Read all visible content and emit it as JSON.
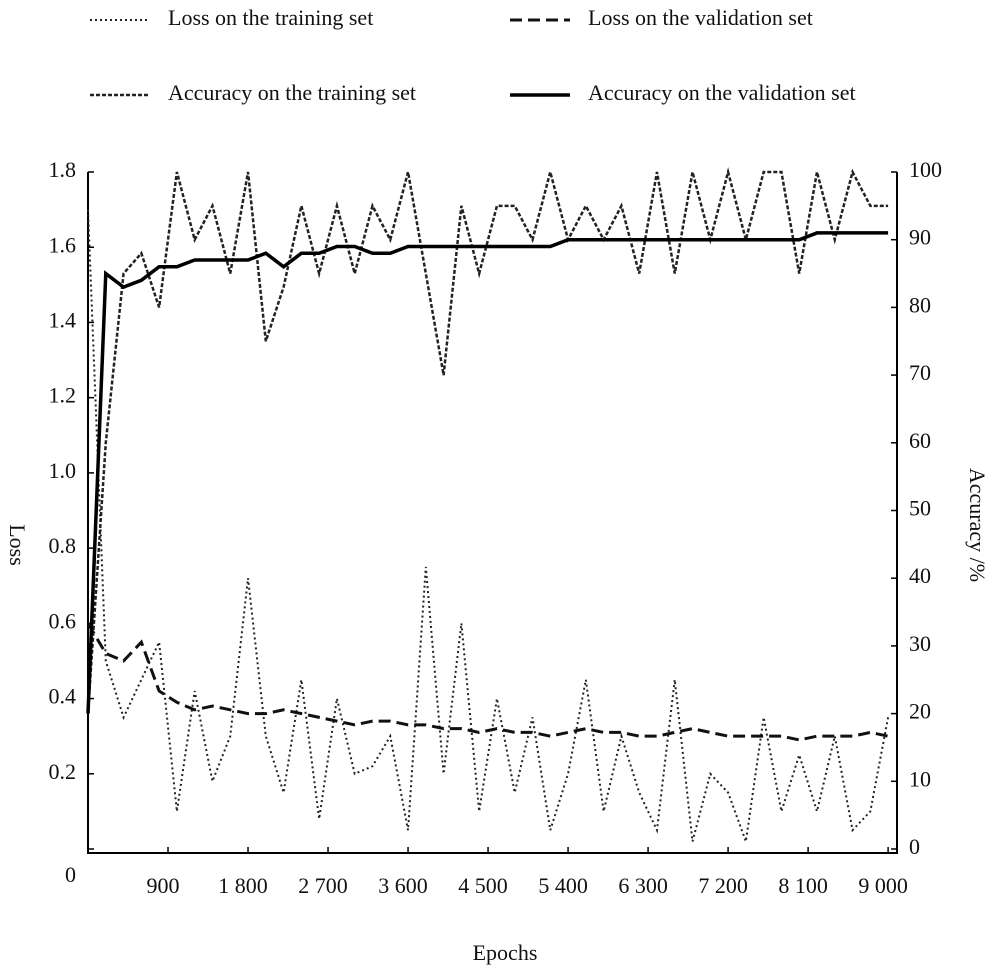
{
  "chart_data": {
    "type": "line",
    "x_label": "Epochs",
    "y_label": "Loss",
    "y2_label": "Accuracy /%",
    "x": [
      0,
      200,
      400,
      600,
      800,
      1000,
      1200,
      1400,
      1600,
      1800,
      2000,
      2200,
      2400,
      2600,
      2800,
      3000,
      3200,
      3400,
      3600,
      3800,
      4000,
      4200,
      4400,
      4600,
      4800,
      5000,
      5200,
      5400,
      5600,
      5800,
      6000,
      6200,
      6400,
      6600,
      6800,
      7000,
      7200,
      7400,
      7600,
      7800,
      8000,
      8200,
      8400,
      8600,
      8800,
      9000
    ],
    "xlim": [
      0,
      9100
    ],
    "xticks": [
      0,
      900,
      {
        "value": 1800,
        "label": "1 800"
      },
      {
        "value": 2700,
        "label": "2 700"
      },
      {
        "value": 3600,
        "label": "3 600"
      },
      {
        "value": 4500,
        "label": "4 500"
      },
      {
        "value": 5400,
        "label": "5 400"
      },
      {
        "value": 6300,
        "label": "6 300"
      },
      {
        "value": 7200,
        "label": "7 200"
      },
      {
        "value": 8100,
        "label": "8 100"
      },
      {
        "value": 9000,
        "label": "9 000"
      }
    ],
    "ylim": [
      0,
      1.8
    ],
    "yticks": [
      0,
      0.2,
      0.4,
      0.6,
      0.8,
      {
        "value": 1,
        "label": "1.0"
      },
      1.2,
      1.4,
      1.6,
      1.8
    ],
    "y2lim": [
      0,
      100
    ],
    "y2ticks": [
      0,
      10,
      20,
      30,
      40,
      50,
      60,
      70,
      80,
      90,
      100
    ],
    "series": [
      {
        "name": "Loss on the training set",
        "color": "#222222",
        "linestyle": "dotted",
        "axis": "y",
        "values": [
          1.7,
          0.5,
          0.35,
          0.45,
          0.55,
          0.1,
          0.42,
          0.18,
          0.3,
          0.72,
          0.3,
          0.15,
          0.45,
          0.08,
          0.4,
          0.2,
          0.22,
          0.3,
          0.05,
          0.75,
          0.2,
          0.6,
          0.1,
          0.4,
          0.15,
          0.35,
          0.05,
          0.2,
          0.45,
          0.1,
          0.3,
          0.15,
          0.05,
          0.45,
          0.02,
          0.2,
          0.15,
          0.02,
          0.35,
          0.1,
          0.25,
          0.1,
          0.3,
          0.05,
          0.1,
          0.35
        ]
      },
      {
        "name": "Loss on the validation set",
        "color": "#111111",
        "linestyle": "dashed",
        "axis": "y",
        "values": [
          0.6,
          0.52,
          0.5,
          0.55,
          0.42,
          0.39,
          0.37,
          0.38,
          0.37,
          0.36,
          0.36,
          0.37,
          0.36,
          0.35,
          0.34,
          0.33,
          0.34,
          0.34,
          0.33,
          0.33,
          0.32,
          0.32,
          0.31,
          0.32,
          0.31,
          0.31,
          0.3,
          0.31,
          0.32,
          0.31,
          0.31,
          0.3,
          0.3,
          0.31,
          0.32,
          0.31,
          0.3,
          0.3,
          0.3,
          0.3,
          0.29,
          0.3,
          0.3,
          0.3,
          0.31,
          0.3
        ]
      },
      {
        "name": "Accuracy on the training set",
        "color": "#222222",
        "linestyle": "dense",
        "axis": "y2",
        "values": [
          20,
          60,
          85,
          88,
          80,
          100,
          90,
          95,
          85,
          100,
          75,
          83,
          95,
          85,
          95,
          85,
          95,
          90,
          100,
          85,
          70,
          95,
          85,
          95,
          95,
          90,
          100,
          90,
          95,
          90,
          95,
          85,
          100,
          85,
          100,
          90,
          100,
          90,
          100,
          100,
          85,
          100,
          90,
          100,
          95,
          95
        ]
      },
      {
        "name": "Accuracy on the validation set",
        "color": "#000000",
        "linestyle": "solid",
        "axis": "y2",
        "values": [
          20,
          85,
          83,
          84,
          86,
          86,
          87,
          87,
          87,
          87,
          88,
          86,
          88,
          88,
          89,
          89,
          88,
          88,
          89,
          89,
          89,
          89,
          89,
          89,
          89,
          89,
          89,
          90,
          90,
          90,
          90,
          90,
          90,
          90,
          90,
          90,
          90,
          90,
          90,
          90,
          90,
          91,
          91,
          91,
          91,
          91
        ]
      }
    ]
  }
}
